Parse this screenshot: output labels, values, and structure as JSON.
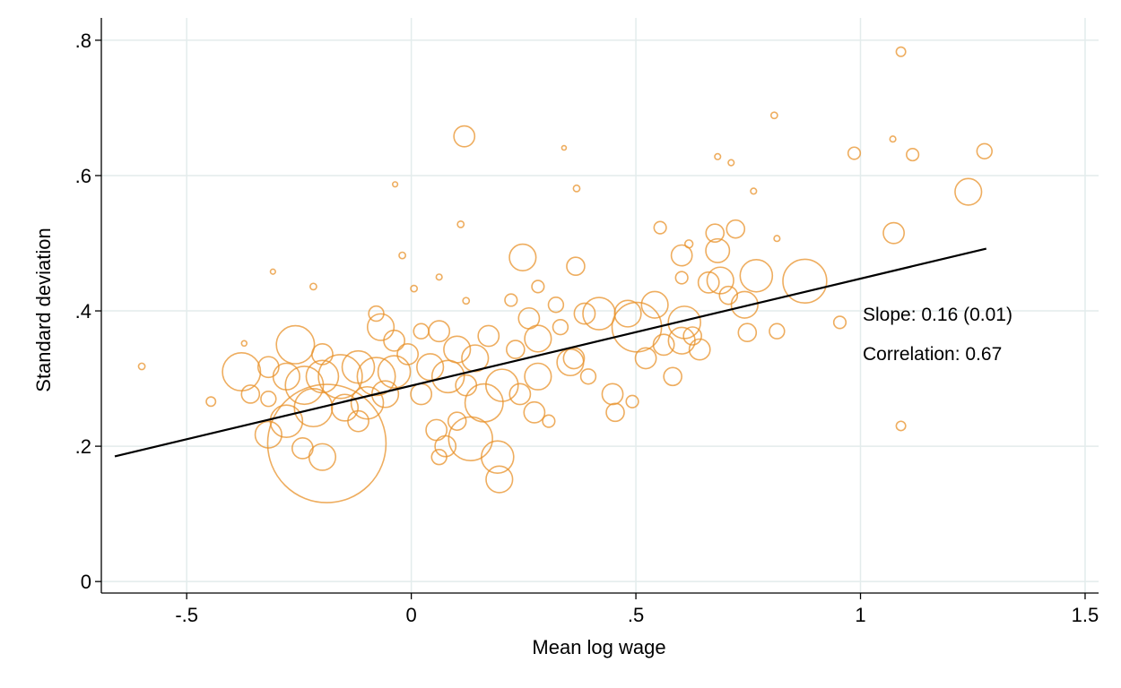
{
  "chart_data": {
    "type": "scatter",
    "xlabel": "Mean log wage",
    "ylabel": "Standard deviation",
    "xlim": [
      -0.69,
      1.53
    ],
    "ylim": [
      -0.017,
      0.833
    ],
    "xticks": [
      {
        "value": -0.5,
        "label": "-.5"
      },
      0,
      {
        "value": 0.5,
        "label": ".5"
      },
      1,
      1.5
    ],
    "yticks": [
      0,
      {
        "value": 0.2,
        "label": ".2"
      },
      {
        "value": 0.4,
        "label": ".4"
      },
      {
        "value": 0.6,
        "label": ".6"
      },
      {
        "value": 0.8,
        "label": ".8"
      }
    ],
    "grid": true,
    "color": "#e8912a",
    "line_color": "#000000",
    "annotations": [
      "Slope: 0.16 (0.01)",
      "Correlation: 0.67"
    ],
    "fit": {
      "x": [
        -0.66,
        1.28
      ],
      "y": [
        0.185,
        0.492
      ]
    },
    "x": [
      -0.6,
      -0.446,
      1.09,
      0.118,
      1.276,
      1.24,
      0.986,
      1.116,
      1.074,
      1.09,
      0.954,
      0.876,
      0.814,
      0.808,
      0.768,
      0.688,
      0.682,
      0.676,
      0.722,
      0.748,
      0.742,
      0.602,
      0.554,
      0.248,
      0.366,
      0.368,
      0.608,
      0.502,
      0.602,
      0.562,
      0.626,
      0.482,
      0.418,
      0.386,
      0.362,
      0.354,
      0.448,
      0.454,
      0.394,
      0.492,
      0.332,
      0.282,
      0.262,
      0.222,
      0.192,
      0.196,
      0.132,
      0.076,
      0.056,
      0.102,
      0.162,
      0.202,
      0.282,
      0.242,
      0.274,
      0.306,
      0.142,
      0.102,
      0.062,
      0.022,
      0.082,
      0.042,
      -0.008,
      -0.038,
      -0.078,
      -0.118,
      -0.158,
      -0.198,
      -0.238,
      -0.278,
      -0.318,
      -0.378,
      -0.358,
      -0.218,
      -0.188,
      -0.278,
      -0.318,
      -0.242,
      -0.198,
      -0.098,
      -0.058,
      -0.118,
      -0.068,
      -0.078,
      -0.038,
      -0.258,
      -0.198,
      -0.308,
      -0.218,
      -0.036,
      -0.02,
      0.11,
      0.34,
      0.682,
      0.712,
      1.072,
      0.762,
      0.814,
      0.618,
      0.062,
      0.006,
      0.122,
      -0.372,
      0.062,
      0.522,
      0.662,
      0.706,
      0.542,
      0.602,
      0.582,
      0.642,
      0.322,
      0.172,
      0.232,
      0.122,
      0.022,
      -0.148,
      -0.318,
      0.282
    ],
    "y": [
      0.318,
      0.266,
      0.783,
      0.658,
      0.636,
      0.576,
      0.633,
      0.631,
      0.515,
      0.23,
      0.383,
      0.444,
      0.37,
      0.689,
      0.452,
      0.445,
      0.489,
      0.515,
      0.521,
      0.368,
      0.409,
      0.482,
      0.523,
      0.479,
      0.466,
      0.581,
      0.383,
      0.376,
      0.356,
      0.35,
      0.363,
      0.396,
      0.396,
      0.396,
      0.33,
      0.324,
      0.277,
      0.25,
      0.303,
      0.266,
      0.376,
      0.359,
      0.389,
      0.416,
      0.184,
      0.151,
      0.211,
      0.2,
      0.224,
      0.237,
      0.264,
      0.29,
      0.303,
      0.277,
      0.25,
      0.237,
      0.33,
      0.343,
      0.37,
      0.37,
      0.303,
      0.317,
      0.336,
      0.31,
      0.303,
      0.317,
      0.303,
      0.303,
      0.29,
      0.303,
      0.317,
      0.31,
      0.277,
      0.257,
      0.204,
      0.237,
      0.217,
      0.197,
      0.184,
      0.264,
      0.277,
      0.237,
      0.376,
      0.396,
      0.356,
      0.35,
      0.336,
      0.458,
      0.436,
      0.587,
      0.482,
      0.528,
      0.641,
      0.628,
      0.619,
      0.654,
      0.577,
      0.507,
      0.499,
      0.45,
      0.433,
      0.415,
      0.352,
      0.184,
      0.33,
      0.442,
      0.423,
      0.409,
      0.449,
      0.303,
      0.343,
      0.409,
      0.363,
      0.343,
      0.29,
      0.277,
      0.257,
      0.27,
      0.436
    ],
    "sizes": [
      1,
      2,
      2,
      6,
      4,
      8,
      3,
      3,
      6,
      2,
      3,
      14,
      4,
      1,
      10,
      8,
      7,
      5,
      5,
      5,
      8,
      6,
      3,
      8,
      5,
      1,
      10,
      16,
      8,
      6,
      5,
      8,
      10,
      6,
      6,
      8,
      6,
      5,
      4,
      3,
      4,
      8,
      6,
      3,
      10,
      8,
      14,
      6,
      6,
      5,
      12,
      10,
      8,
      6,
      6,
      3,
      8,
      8,
      6,
      4,
      10,
      8,
      6,
      10,
      12,
      10,
      14,
      10,
      12,
      8,
      6,
      12,
      5,
      12,
      40,
      10,
      8,
      6,
      8,
      10,
      8,
      6,
      8,
      4,
      6,
      12,
      6,
      0.5,
      1,
      0.5,
      1,
      1,
      0.3,
      0.8,
      0.8,
      0.8,
      0.8,
      0.8,
      1.5,
      0.8,
      1,
      1,
      0.6,
      4,
      6,
      6,
      5,
      8,
      3,
      5,
      6,
      4,
      6,
      5,
      6,
      6,
      8,
      4,
      3
    ]
  }
}
